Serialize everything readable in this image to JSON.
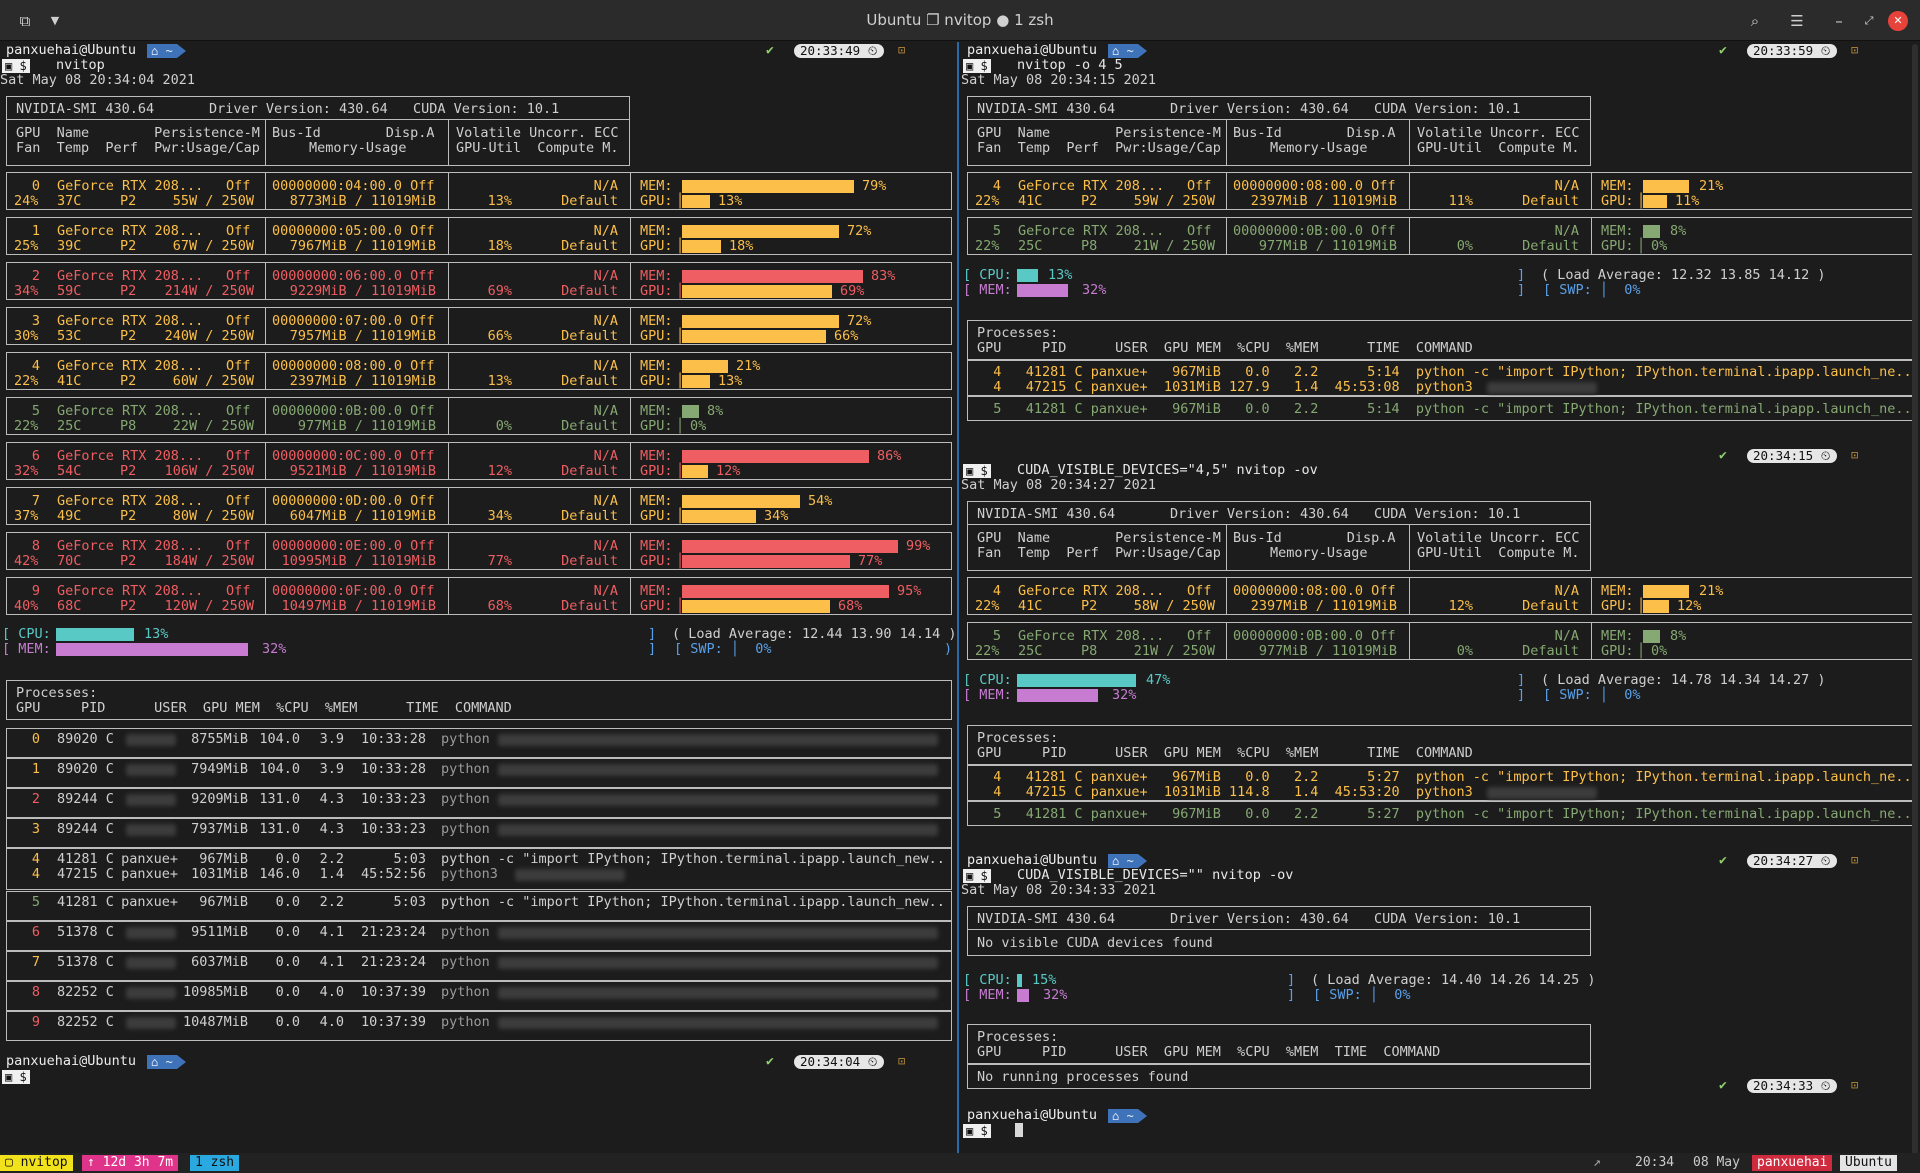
{
  "window": {
    "title": "Ubuntu ❐ nvitop ● 1 zsh"
  },
  "left": {
    "prompt1": {
      "user": "panxuehai@Ubuntu",
      "dir": "⌂ ~",
      "cmd": "nvitop",
      "time": "20:33:49"
    },
    "date": "Sat May 08 20:34:04 2021",
    "header": {
      "smi": "NVIDIA-SMI 430.64",
      "driver": "Driver Version: 430.64",
      "cuda": "CUDA Version: 10.1",
      "h1a": "GPU  Name        Persistence-M",
      "h1b": "Bus-Id        Disp.A",
      "h1c": "Volatile Uncorr. ECC",
      "h2a": "Fan  Temp  Perf  Pwr:Usage/Cap",
      "h2b": "Memory-Usage",
      "h2c": "GPU-Util  Compute M."
    },
    "gpus": [
      {
        "id": "0",
        "fan": "24%",
        "temp": "37C",
        "perf": "P2",
        "pwr": "55W / 250W",
        "bus": "00000000:04:00.0 Off",
        "mem": "8773MiB / 11019MiB",
        "util": "13%",
        "mem_pct": 79,
        "gpu_pct": 13,
        "mem_lbl": "79%",
        "gpu_lbl": "13%",
        "color": "#fbbf4a",
        "mc": "y",
        "gc": "y"
      },
      {
        "id": "1",
        "fan": "25%",
        "temp": "39C",
        "perf": "P2",
        "pwr": "67W / 250W",
        "bus": "00000000:05:00.0 Off",
        "mem": "7967MiB / 11019MiB",
        "util": "18%",
        "mem_pct": 72,
        "gpu_pct": 18,
        "mem_lbl": "72%",
        "gpu_lbl": "18%",
        "color": "#fbbf4a",
        "mc": "y",
        "gc": "y"
      },
      {
        "id": "2",
        "fan": "34%",
        "temp": "59C",
        "perf": "P2",
        "pwr": "214W / 250W",
        "bus": "00000000:06:00.0 Off",
        "mem": "9229MiB / 11019MiB",
        "util": "69%",
        "mem_pct": 83,
        "gpu_pct": 69,
        "mem_lbl": "83%",
        "gpu_lbl": "69%",
        "color": "#ef5e62",
        "mc": "r",
        "gc": "y"
      },
      {
        "id": "3",
        "fan": "30%",
        "temp": "53C",
        "perf": "P2",
        "pwr": "240W / 250W",
        "bus": "00000000:07:00.0 Off",
        "mem": "7957MiB / 11019MiB",
        "util": "66%",
        "mem_pct": 72,
        "gpu_pct": 66,
        "mem_lbl": "72%",
        "gpu_lbl": "66%",
        "color": "#fbbf4a",
        "mc": "y",
        "gc": "y"
      },
      {
        "id": "4",
        "fan": "22%",
        "temp": "41C",
        "perf": "P2",
        "pwr": "60W / 250W",
        "bus": "00000000:08:00.0 Off",
        "mem": "2397MiB / 11019MiB",
        "util": "13%",
        "mem_pct": 21,
        "gpu_pct": 13,
        "mem_lbl": "21%",
        "gpu_lbl": "13%",
        "color": "#fbbf4a",
        "mc": "y",
        "gc": "y"
      },
      {
        "id": "5",
        "fan": "22%",
        "temp": "25C",
        "perf": "P8",
        "pwr": "22W / 250W",
        "bus": "00000000:0B:00.0 Off",
        "mem": "977MiB / 11019MiB",
        "util": "0%",
        "mem_pct": 8,
        "gpu_pct": 0,
        "mem_lbl": "8%",
        "gpu_lbl": "0%",
        "color": "#86a872",
        "mc": "gr",
        "gc": "gr"
      },
      {
        "id": "6",
        "fan": "32%",
        "temp": "54C",
        "perf": "P2",
        "pwr": "106W / 250W",
        "bus": "00000000:0C:00.0 Off",
        "mem": "9521MiB / 11019MiB",
        "util": "12%",
        "mem_pct": 86,
        "gpu_pct": 12,
        "mem_lbl": "86%",
        "gpu_lbl": "12%",
        "color": "#ef5e62",
        "mc": "r",
        "gc": "y"
      },
      {
        "id": "7",
        "fan": "37%",
        "temp": "49C",
        "perf": "P2",
        "pwr": "80W / 250W",
        "bus": "00000000:0D:00.0 Off",
        "mem": "6047MiB / 11019MiB",
        "util": "34%",
        "mem_pct": 54,
        "gpu_pct": 34,
        "mem_lbl": "54%",
        "gpu_lbl": "34%",
        "color": "#fbbf4a",
        "mc": "y",
        "gc": "y"
      },
      {
        "id": "8",
        "fan": "42%",
        "temp": "70C",
        "perf": "P2",
        "pwr": "184W / 250W",
        "bus": "00000000:0E:00.0 Off",
        "mem": "10995MiB / 11019MiB",
        "util": "77%",
        "mem_pct": 99,
        "gpu_pct": 77,
        "mem_lbl": "99%",
        "gpu_lbl": "77%",
        "color": "#ef5e62",
        "mc": "r",
        "gc": "r"
      },
      {
        "id": "9",
        "fan": "40%",
        "temp": "68C",
        "perf": "P2",
        "pwr": "120W / 250W",
        "bus": "00000000:0F:00.0 Off",
        "mem": "10497MiB / 11019MiB",
        "util": "68%",
        "mem_pct": 95,
        "gpu_pct": 68,
        "mem_lbl": "95%",
        "gpu_lbl": "68%",
        "color": "#ef5e62",
        "mc": "r",
        "gc": "y"
      }
    ],
    "host": {
      "cpu_pct": 13,
      "cpu_lbl": "13%",
      "mem_pct": 32,
      "mem_lbl": "32%",
      "load": "( Load Average: 12.44 13.90 14.14 )",
      "swp": "[ SWP: │  0%"
    },
    "proc_title": "Processes:",
    "proc_head": "GPU     PID      USER  GPU MEM  %CPU  %MEM      TIME  COMMAND",
    "procs": [
      {
        "gpu": "0",
        "pid": "89020 C",
        "user": "",
        "mem": "8755MiB",
        "cpu": "104.0",
        "pmem": "3.9",
        "time": "10:33:28",
        "cmd": "python",
        "blur": true,
        "color": "#fbbf4a"
      },
      {
        "gpu": "1",
        "pid": "89020 C",
        "user": "",
        "mem": "7949MiB",
        "cpu": "104.0",
        "pmem": "3.9",
        "time": "10:33:28",
        "cmd": "python",
        "blur": true,
        "color": "#fbbf4a"
      },
      {
        "gpu": "2",
        "pid": "89244 C",
        "user": "",
        "mem": "9209MiB",
        "cpu": "131.0",
        "pmem": "4.3",
        "time": "10:33:23",
        "cmd": "python",
        "blur": true,
        "color": "#ef5e62"
      },
      {
        "gpu": "3",
        "pid": "89244 C",
        "user": "",
        "mem": "7937MiB",
        "cpu": "131.0",
        "pmem": "4.3",
        "time": "10:33:23",
        "cmd": "python",
        "blur": true,
        "color": "#fbbf4a"
      },
      {
        "gpu": "4",
        "pid": "41281 C",
        "user": "panxue+",
        "mem": "967MiB",
        "cpu": "0.0",
        "pmem": "2.2",
        "time": "5:03",
        "cmd": "python -c \"import IPython; IPython.terminal.ipapp.launch_new..",
        "blur": false,
        "color": "#fbbf4a"
      },
      {
        "gpu": "4",
        "pid": "47215 C",
        "user": "panxue+",
        "mem": "1031MiB",
        "cpu": "146.0",
        "pmem": "1.4",
        "time": "45:52:56",
        "cmd": "python3",
        "blur": true,
        "color": "#fbbf4a"
      },
      {
        "gpu": "5",
        "pid": "41281 C",
        "user": "panxue+",
        "mem": "967MiB",
        "cpu": "0.0",
        "pmem": "2.2",
        "time": "5:03",
        "cmd": "python -c \"import IPython; IPython.terminal.ipapp.launch_new..",
        "blur": false,
        "color": "#86a872"
      },
      {
        "gpu": "6",
        "pid": "51378 C",
        "user": "",
        "mem": "9511MiB",
        "cpu": "0.0",
        "pmem": "4.1",
        "time": "21:23:24",
        "cmd": "python",
        "blur": true,
        "color": "#ef5e62"
      },
      {
        "gpu": "7",
        "pid": "51378 C",
        "user": "",
        "mem": "6037MiB",
        "cpu": "0.0",
        "pmem": "4.1",
        "time": "21:23:24",
        "cmd": "python",
        "blur": true,
        "color": "#fbbf4a"
      },
      {
        "gpu": "8",
        "pid": "82252 C",
        "user": "",
        "mem": "10985MiB",
        "cpu": "0.0",
        "pmem": "4.0",
        "time": "10:37:39",
        "cmd": "python",
        "blur": true,
        "color": "#ef5e62"
      },
      {
        "gpu": "9",
        "pid": "82252 C",
        "user": "",
        "mem": "10487MiB",
        "cpu": "0.0",
        "pmem": "4.0",
        "time": "10:37:39",
        "cmd": "python",
        "blur": true,
        "color": "#ef5e62"
      }
    ],
    "prompt2": {
      "user": "panxuehai@Ubuntu",
      "dir": "⌂ ~",
      "time": "20:34:04"
    }
  },
  "right": {
    "p1": {
      "user": "panxuehai@Ubuntu",
      "dir": "⌂ ~",
      "cmd": "nvitop -o 4 5",
      "time": "20:33:59",
      "date": "Sat May 08 20:34:15 2021"
    },
    "p2": {
      "cmd": "CUDA_VISIBLE_DEVICES=\"4,5\" nvitop -ov",
      "time": "20:34:15",
      "date": "Sat May 08 20:34:27 2021"
    },
    "p3": {
      "user": "panxuehai@Ubuntu",
      "dir": "⌂ ~",
      "cmd": "CUDA_VISIBLE_DEVICES=\"\" nvitop -ov",
      "time": "20:34:27",
      "date": "Sat May 08 20:34:33 2021"
    },
    "p4": {
      "user": "panxuehai@Ubuntu",
      "dir": "⌂ ~",
      "time": "20:34:33"
    },
    "s1": {
      "g4": {
        "id": "4",
        "fan": "22%",
        "temp": "41C",
        "perf": "P2",
        "pwr": "59W / 250W",
        "bus": "00000000:08:00.0 Off",
        "mem": "2397MiB / 11019MiB",
        "util": "11%",
        "mem_pct": 21,
        "gpu_pct": 11,
        "mem_lbl": "21%",
        "gpu_lbl": "11%"
      },
      "g5": {
        "id": "5",
        "fan": "22%",
        "temp": "25C",
        "perf": "P8",
        "pwr": "21W / 250W",
        "bus": "00000000:0B:00.0 Off",
        "mem": "977MiB / 11019MiB",
        "util": "0%",
        "mem_pct": 8,
        "gpu_pct": 0,
        "mem_lbl": "8%",
        "gpu_lbl": "0%"
      },
      "cpu_pct": 13,
      "cpu_lbl": "13%",
      "mem_pct": 32,
      "mem_lbl": "32%",
      "load": "( Load Average: 12.32 13.85 14.12 )",
      "pr1": "  4   41281 C panxue+   967MiB   0.0   2.2      5:14  python -c \"import IPython; IPython.terminal.ipapp.launch_ne..",
      "pr2": "  4   47215 C panxue+  1031MiB 127.9   1.4  45:53:08  python3",
      "pr3": "  5   41281 C panxue+   967MiB   0.0   2.2      5:14  python -c \"import IPython; IPython.terminal.ipapp.launch_ne.."
    },
    "s2": {
      "g4": {
        "id": "4",
        "fan": "22%",
        "temp": "41C",
        "perf": "P2",
        "pwr": "58W / 250W",
        "bus": "00000000:08:00.0 Off",
        "mem": "2397MiB / 11019MiB",
        "util": "12%",
        "mem_pct": 21,
        "gpu_pct": 12,
        "mem_lbl": "21%",
        "gpu_lbl": "12%"
      },
      "g5": {
        "id": "5",
        "fan": "22%",
        "temp": "25C",
        "perf": "P8",
        "pwr": "21W / 250W",
        "bus": "00000000:0B:00.0 Off",
        "mem": "977MiB / 11019MiB",
        "util": "0%",
        "mem_pct": 8,
        "gpu_pct": 0,
        "mem_lbl": "8%",
        "gpu_lbl": "0%"
      },
      "cpu_pct": 47,
      "cpu_lbl": "47%",
      "mem_pct": 32,
      "mem_lbl": "32%",
      "load": "( Load Average: 14.78 14.34 14.27 )",
      "pr1": "  4   41281 C panxue+   967MiB   0.0   2.2      5:27  python -c \"import IPython; IPython.terminal.ipapp.launch_ne..",
      "pr2": "  4   47215 C panxue+  1031MiB 114.8   1.4  45:53:20  python3",
      "pr3": "  5   41281 C panxue+   967MiB   0.0   2.2      5:27  python -c \"import IPython; IPython.terminal.ipapp.launch_ne.."
    },
    "s3": {
      "no_dev": "No visible CUDA devices found",
      "cpu_pct": 15,
      "cpu_lbl": "15%",
      "mem_pct": 32,
      "mem_lbl": "32%",
      "load": "( Load Average: 14.40 14.26 14.25 )",
      "proc_head": "GPU     PID      USER  GPU MEM  %CPU  %MEM  TIME  COMMAND",
      "no_proc": "No running processes found"
    }
  },
  "labels": {
    "mem": "MEM:",
    "gpu": "GPU:",
    "cpu": "CPU:",
    "swp": "[ SWP: │  0%",
    "na": "N/A",
    "def": "Default",
    "name": "GeForce RTX 208...",
    "off": "Off",
    "dollar": "$",
    "prompt_icon": "▣"
  },
  "status": {
    "session": "▢ nvitop",
    "uptime": "↑ 12d 3h 7m",
    "window": "1 zsh",
    "clock": "20:34",
    "date": "08 May",
    "user": "panxuehai",
    "host": "Ubuntu"
  },
  "colors": {
    "yellow": "#fbbf4a",
    "red": "#ef5e62",
    "green": "#86a872",
    "cyan": "#59c9c6",
    "magenta": "#c77cd2",
    "blue": "#3e73ba"
  }
}
